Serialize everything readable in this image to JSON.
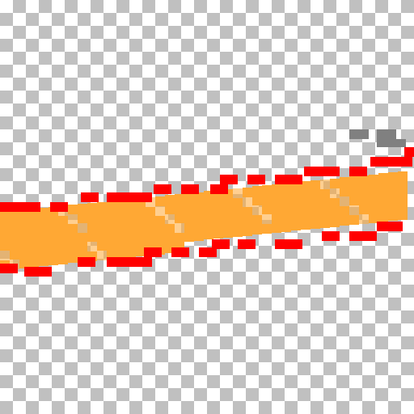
{
  "canvas": {
    "background": "transparent-checkerboard",
    "checker_colors": {
      "light": "#ffffff",
      "dark": "#c0c0c0"
    }
  },
  "sprite": {
    "subject": "flame-streak",
    "palette": {
      "core": "#ffa834",
      "edge": "#ff0000",
      "smoke": "#808080"
    }
  }
}
